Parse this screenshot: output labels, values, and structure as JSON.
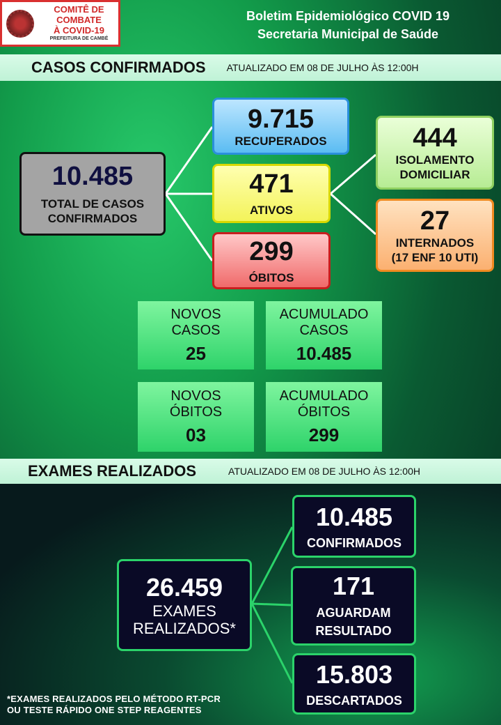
{
  "logo": {
    "line1": "COMITÊ DE COMBATE",
    "line2": "À COVID-19",
    "line3": "PREFEITURA DE CAMBÉ"
  },
  "header": {
    "title": "Boletim Epidemiológico COVID 19",
    "subtitle": "Secretaria Municipal de Saúde"
  },
  "casos": {
    "heading": "CASOS CONFIRMADOS",
    "updated": "ATUALIZADO  EM 08 DE JULHO ÀS 12:00H",
    "total": {
      "value": "10.485",
      "label": "TOTAL DE CASOS CONFIRMADOS"
    },
    "recuperados": {
      "value": "9.715",
      "label": "RECUPERADOS"
    },
    "ativos": {
      "value": "471",
      "label": "ATIVOS"
    },
    "obitos": {
      "value": "299",
      "label": "ÓBITOS"
    },
    "isolamento": {
      "value": "444",
      "label1": "ISOLAMENTO",
      "label2": "DOMICILIAR"
    },
    "internados": {
      "value": "27",
      "label": "INTERNADOS",
      "detail": "(17 ENF 10 UTI)"
    },
    "novos_casos": {
      "label1": "NOVOS",
      "label2": "CASOS",
      "value": "25"
    },
    "acumulado_casos": {
      "label1": "ACUMULADO",
      "label2": "CASOS",
      "value": "10.485"
    },
    "novos_obitos": {
      "label1": "NOVOS",
      "label2": "ÓBITOS",
      "value": "03"
    },
    "acumulado_obitos": {
      "label1": "ACUMULADO",
      "label2": "ÓBITOS",
      "value": "299"
    }
  },
  "exames": {
    "heading": "EXAMES REALIZADOS",
    "updated": "ATUALIZADO  EM 08 DE JULHO ÀS 12:00H",
    "total": {
      "value": "26.459",
      "label1": "EXAMES",
      "label2": "REALIZADOS*"
    },
    "confirmados": {
      "value": "10.485",
      "label": "CONFIRMADOS"
    },
    "aguardam": {
      "value": "171",
      "label1": "AGUARDAM",
      "label2": "RESULTADO"
    },
    "descartados": {
      "value": "15.803",
      "label": "DESCARTADOS"
    },
    "footnote1": "*EXAMES REALIZADOS  PELO MÉTODO RT-PCR",
    "footnote2": "OU TESTE RÁPIDO  ONE STEP REAGENTES"
  }
}
